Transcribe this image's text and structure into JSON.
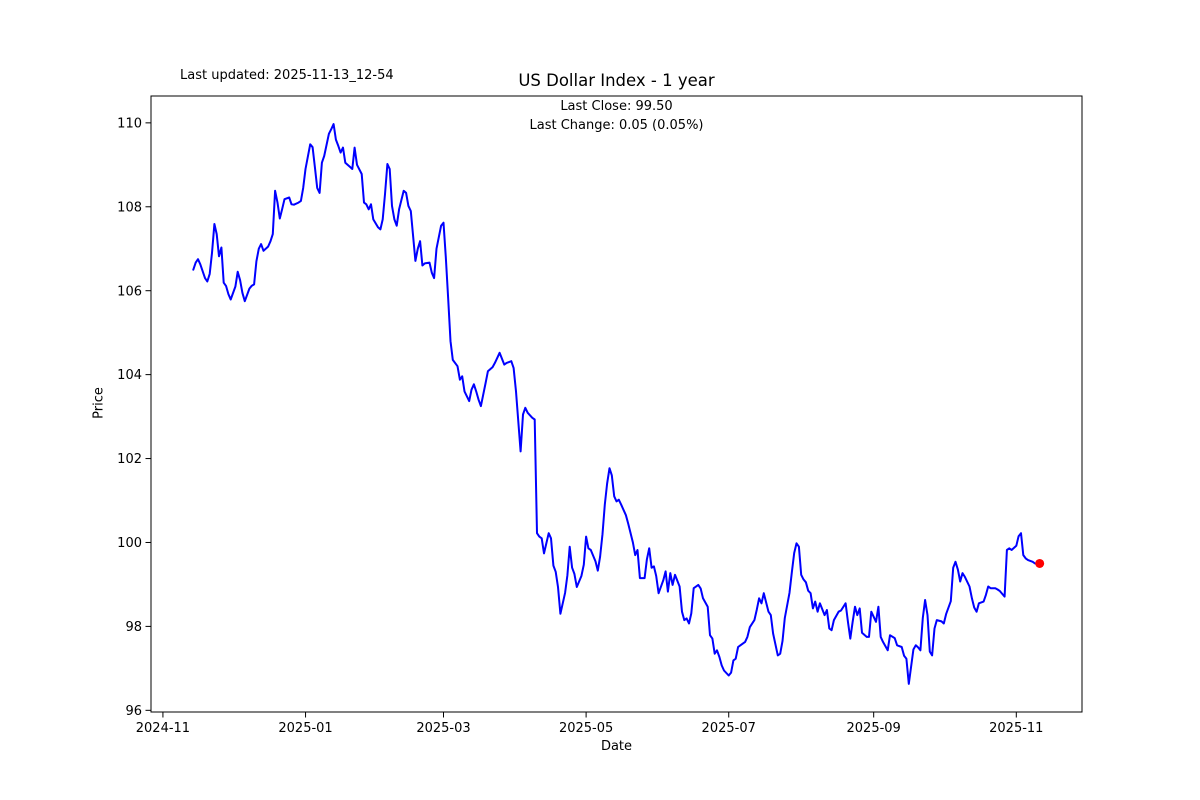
{
  "chart_data": {
    "type": "line",
    "title": "US Dollar Index - 1 year",
    "xlabel": "Date",
    "ylabel": "Price",
    "annotations": {
      "last_updated": "Last updated: 2025-11-13_12-54",
      "last_close": "Last Close: 99.50",
      "last_change": "Last Change: 0.05 (0.05%)"
    },
    "last_close_value": 99.5,
    "last_change_value": 0.05,
    "last_change_pct": "0.05%",
    "line_color": "#0000ff",
    "last_point_color": "#ff0000",
    "grid": false,
    "legend": "none",
    "start_date": "2024-11-14",
    "end_date": "2025-11-12",
    "x_unit": "days since 2024-11-14",
    "xlim_days": [
      -18.1,
      380.1
    ],
    "ylim": [
      95.96,
      110.64
    ],
    "y_ticks": [
      96,
      98,
      100,
      102,
      104,
      106,
      108,
      110
    ],
    "x_ticks": [
      {
        "label": "2024-11",
        "day": -13
      },
      {
        "label": "2025-01",
        "day": 48
      },
      {
        "label": "2025-03",
        "day": 107
      },
      {
        "label": "2025-05",
        "day": 168
      },
      {
        "label": "2025-07",
        "day": 229
      },
      {
        "label": "2025-09",
        "day": 291
      },
      {
        "label": "2025-11",
        "day": 352
      }
    ],
    "points": [
      [
        0,
        106.5
      ],
      [
        1,
        106.67
      ],
      [
        2,
        106.75
      ],
      [
        3,
        106.63
      ],
      [
        5,
        106.3
      ],
      [
        6,
        106.22
      ],
      [
        7,
        106.4
      ],
      [
        8,
        106.9
      ],
      [
        9,
        107.59
      ],
      [
        10,
        107.35
      ],
      [
        11,
        106.82
      ],
      [
        12,
        107.03
      ],
      [
        13,
        106.19
      ],
      [
        14,
        106.11
      ],
      [
        15,
        105.92
      ],
      [
        16,
        105.79
      ],
      [
        18,
        106.1
      ],
      [
        19,
        106.45
      ],
      [
        20,
        106.25
      ],
      [
        21,
        105.95
      ],
      [
        22,
        105.75
      ],
      [
        24,
        106.05
      ],
      [
        25,
        106.12
      ],
      [
        26,
        106.15
      ],
      [
        27,
        106.7
      ],
      [
        28,
        107.0
      ],
      [
        29,
        107.11
      ],
      [
        30,
        106.95
      ],
      [
        32,
        107.05
      ],
      [
        33,
        107.18
      ],
      [
        34,
        107.35
      ],
      [
        35,
        108.38
      ],
      [
        36,
        108.1
      ],
      [
        37,
        107.72
      ],
      [
        38,
        107.95
      ],
      [
        39,
        108.18
      ],
      [
        41,
        108.22
      ],
      [
        42,
        108.06
      ],
      [
        43,
        108.05
      ],
      [
        45,
        108.1
      ],
      [
        46,
        108.14
      ],
      [
        47,
        108.45
      ],
      [
        48,
        108.9
      ],
      [
        50,
        109.49
      ],
      [
        51,
        109.42
      ],
      [
        52,
        108.94
      ],
      [
        53,
        108.45
      ],
      [
        54,
        108.33
      ],
      [
        55,
        109.05
      ],
      [
        56,
        109.21
      ],
      [
        58,
        109.74
      ],
      [
        59,
        109.85
      ],
      [
        60,
        109.97
      ],
      [
        61,
        109.6
      ],
      [
        62,
        109.45
      ],
      [
        63,
        109.29
      ],
      [
        64,
        109.41
      ],
      [
        65,
        109.05
      ],
      [
        67,
        108.95
      ],
      [
        68,
        108.9
      ],
      [
        69,
        109.41
      ],
      [
        70,
        109.0
      ],
      [
        72,
        108.78
      ],
      [
        73,
        108.1
      ],
      [
        74,
        108.06
      ],
      [
        75,
        107.94
      ],
      [
        76,
        108.06
      ],
      [
        77,
        107.7
      ],
      [
        79,
        107.51
      ],
      [
        80,
        107.46
      ],
      [
        81,
        107.7
      ],
      [
        82,
        108.3
      ],
      [
        83,
        109.02
      ],
      [
        84,
        108.9
      ],
      [
        85,
        108.02
      ],
      [
        86,
        107.7
      ],
      [
        87,
        107.55
      ],
      [
        88,
        107.94
      ],
      [
        90,
        108.38
      ],
      [
        91,
        108.33
      ],
      [
        92,
        108.02
      ],
      [
        93,
        107.9
      ],
      [
        95,
        106.71
      ],
      [
        96,
        107.0
      ],
      [
        97,
        107.18
      ],
      [
        98,
        106.6
      ],
      [
        99,
        106.65
      ],
      [
        101,
        106.67
      ],
      [
        102,
        106.43
      ],
      [
        103,
        106.3
      ],
      [
        104,
        107.0
      ],
      [
        106,
        107.55
      ],
      [
        107,
        107.62
      ],
      [
        108,
        106.8
      ],
      [
        109,
        105.8
      ],
      [
        110,
        104.8
      ],
      [
        111,
        104.35
      ],
      [
        113,
        104.2
      ],
      [
        114,
        103.88
      ],
      [
        115,
        103.96
      ],
      [
        116,
        103.6
      ],
      [
        118,
        103.37
      ],
      [
        119,
        103.64
      ],
      [
        120,
        103.77
      ],
      [
        121,
        103.6
      ],
      [
        122,
        103.4
      ],
      [
        123,
        103.25
      ],
      [
        125,
        103.8
      ],
      [
        126,
        104.08
      ],
      [
        128,
        104.18
      ],
      [
        129,
        104.28
      ],
      [
        130,
        104.4
      ],
      [
        131,
        104.52
      ],
      [
        133,
        104.24
      ],
      [
        134,
        104.28
      ],
      [
        136,
        104.32
      ],
      [
        137,
        104.16
      ],
      [
        138,
        103.6
      ],
      [
        140,
        102.17
      ],
      [
        141,
        103.05
      ],
      [
        142,
        103.21
      ],
      [
        143,
        103.09
      ],
      [
        145,
        102.97
      ],
      [
        146,
        102.93
      ],
      [
        147,
        100.22
      ],
      [
        148,
        100.14
      ],
      [
        149,
        100.1
      ],
      [
        150,
        99.74
      ],
      [
        152,
        100.22
      ],
      [
        153,
        100.1
      ],
      [
        154,
        99.45
      ],
      [
        155,
        99.3
      ],
      [
        156,
        98.94
      ],
      [
        157,
        98.3
      ],
      [
        159,
        98.8
      ],
      [
        160,
        99.22
      ],
      [
        161,
        99.9
      ],
      [
        162,
        99.4
      ],
      [
        163,
        99.25
      ],
      [
        164,
        98.94
      ],
      [
        166,
        99.2
      ],
      [
        167,
        99.47
      ],
      [
        168,
        100.14
      ],
      [
        169,
        99.86
      ],
      [
        170,
        99.82
      ],
      [
        172,
        99.55
      ],
      [
        173,
        99.33
      ],
      [
        174,
        99.66
      ],
      [
        175,
        100.2
      ],
      [
        176,
        100.9
      ],
      [
        177,
        101.4
      ],
      [
        178,
        101.77
      ],
      [
        179,
        101.6
      ],
      [
        180,
        101.1
      ],
      [
        181,
        100.98
      ],
      [
        182,
        101.02
      ],
      [
        183,
        100.9
      ],
      [
        185,
        100.65
      ],
      [
        186,
        100.45
      ],
      [
        188,
        100.0
      ],
      [
        189,
        99.7
      ],
      [
        190,
        99.82
      ],
      [
        191,
        99.15
      ],
      [
        193,
        99.15
      ],
      [
        194,
        99.6
      ],
      [
        195,
        99.86
      ],
      [
        196,
        99.4
      ],
      [
        197,
        99.43
      ],
      [
        198,
        99.2
      ],
      [
        199,
        98.79
      ],
      [
        201,
        99.1
      ],
      [
        202,
        99.31
      ],
      [
        203,
        98.83
      ],
      [
        204,
        99.27
      ],
      [
        205,
        98.99
      ],
      [
        206,
        99.23
      ],
      [
        208,
        98.95
      ],
      [
        209,
        98.35
      ],
      [
        210,
        98.15
      ],
      [
        211,
        98.19
      ],
      [
        212,
        98.07
      ],
      [
        213,
        98.31
      ],
      [
        214,
        98.91
      ],
      [
        216,
        98.99
      ],
      [
        217,
        98.9
      ],
      [
        218,
        98.67
      ],
      [
        220,
        98.47
      ],
      [
        221,
        97.79
      ],
      [
        222,
        97.71
      ],
      [
        223,
        97.35
      ],
      [
        224,
        97.43
      ],
      [
        225,
        97.27
      ],
      [
        226,
        97.07
      ],
      [
        227,
        96.95
      ],
      [
        229,
        96.83
      ],
      [
        230,
        96.9
      ],
      [
        231,
        97.19
      ],
      [
        232,
        97.23
      ],
      [
        233,
        97.51
      ],
      [
        234,
        97.55
      ],
      [
        236,
        97.63
      ],
      [
        237,
        97.75
      ],
      [
        238,
        97.98
      ],
      [
        240,
        98.15
      ],
      [
        241,
        98.4
      ],
      [
        242,
        98.67
      ],
      [
        243,
        98.55
      ],
      [
        244,
        98.79
      ],
      [
        246,
        98.35
      ],
      [
        247,
        98.27
      ],
      [
        248,
        97.83
      ],
      [
        250,
        97.31
      ],
      [
        251,
        97.35
      ],
      [
        252,
        97.65
      ],
      [
        253,
        98.2
      ],
      [
        255,
        98.8
      ],
      [
        256,
        99.3
      ],
      [
        257,
        99.75
      ],
      [
        258,
        99.98
      ],
      [
        259,
        99.9
      ],
      [
        260,
        99.23
      ],
      [
        261,
        99.12
      ],
      [
        262,
        99.05
      ],
      [
        263,
        98.85
      ],
      [
        264,
        98.79
      ],
      [
        265,
        98.43
      ],
      [
        266,
        98.59
      ],
      [
        267,
        98.35
      ],
      [
        268,
        98.55
      ],
      [
        270,
        98.27
      ],
      [
        271,
        98.39
      ],
      [
        272,
        97.95
      ],
      [
        273,
        97.91
      ],
      [
        274,
        98.15
      ],
      [
        276,
        98.35
      ],
      [
        277,
        98.38
      ],
      [
        279,
        98.55
      ],
      [
        280,
        98.1
      ],
      [
        281,
        97.71
      ],
      [
        282,
        98.1
      ],
      [
        283,
        98.47
      ],
      [
        284,
        98.27
      ],
      [
        285,
        98.43
      ],
      [
        286,
        97.85
      ],
      [
        288,
        97.75
      ],
      [
        289,
        97.75
      ],
      [
        290,
        98.35
      ],
      [
        292,
        98.11
      ],
      [
        293,
        98.47
      ],
      [
        294,
        97.75
      ],
      [
        295,
        97.63
      ],
      [
        297,
        97.43
      ],
      [
        298,
        97.79
      ],
      [
        300,
        97.72
      ],
      [
        301,
        97.55
      ],
      [
        303,
        97.51
      ],
      [
        304,
        97.3
      ],
      [
        305,
        97.23
      ],
      [
        306,
        96.63
      ],
      [
        308,
        97.45
      ],
      [
        309,
        97.55
      ],
      [
        310,
        97.5
      ],
      [
        311,
        97.43
      ],
      [
        312,
        98.2
      ],
      [
        313,
        98.63
      ],
      [
        314,
        98.27
      ],
      [
        315,
        97.4
      ],
      [
        316,
        97.31
      ],
      [
        317,
        97.95
      ],
      [
        318,
        98.15
      ],
      [
        320,
        98.12
      ],
      [
        321,
        98.07
      ],
      [
        322,
        98.3
      ],
      [
        324,
        98.6
      ],
      [
        325,
        99.4
      ],
      [
        326,
        99.54
      ],
      [
        327,
        99.35
      ],
      [
        328,
        99.07
      ],
      [
        329,
        99.27
      ],
      [
        330,
        99.18
      ],
      [
        332,
        98.95
      ],
      [
        333,
        98.67
      ],
      [
        334,
        98.45
      ],
      [
        335,
        98.35
      ],
      [
        336,
        98.55
      ],
      [
        338,
        98.59
      ],
      [
        339,
        98.75
      ],
      [
        340,
        98.95
      ],
      [
        341,
        98.91
      ],
      [
        343,
        98.91
      ],
      [
        344,
        98.88
      ],
      [
        345,
        98.84
      ],
      [
        347,
        98.71
      ],
      [
        348,
        99.82
      ],
      [
        349,
        99.86
      ],
      [
        350,
        99.82
      ],
      [
        352,
        99.92
      ],
      [
        353,
        100.15
      ],
      [
        354,
        100.22
      ],
      [
        355,
        99.7
      ],
      [
        356,
        99.62
      ],
      [
        357,
        99.58
      ],
      [
        359,
        99.54
      ],
      [
        360,
        99.5
      ],
      [
        361,
        99.5
      ],
      [
        362,
        99.5
      ]
    ]
  }
}
